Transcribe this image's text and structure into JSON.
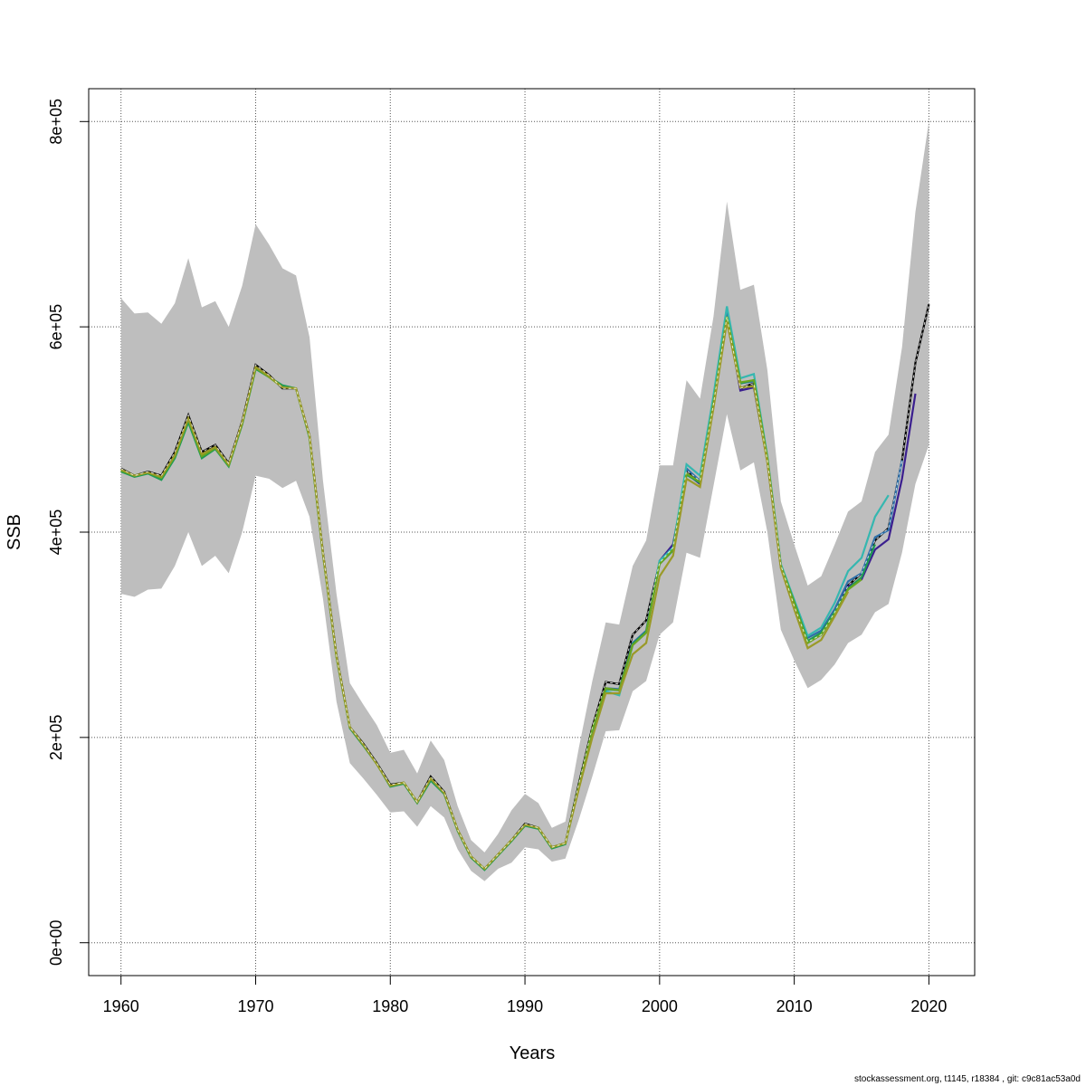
{
  "footer_text": "stockassessment.org, t1145, r18384 , git: c9c81ac53a0d",
  "chart_data": {
    "type": "line",
    "xlabel": "Years",
    "ylabel": "SSB",
    "xlim": [
      1957.6,
      2023.4
    ],
    "ylim": [
      -32000,
      832000
    ],
    "x_ticks": [
      1960,
      1970,
      1980,
      1990,
      2000,
      2010,
      2020
    ],
    "x_tick_labels": [
      "1960",
      "1970",
      "1980",
      "1990",
      "2000",
      "2010",
      "2020"
    ],
    "y_ticks": [
      0,
      200000,
      400000,
      600000,
      800000
    ],
    "y_tick_labels": [
      "0e+00",
      "2e+05",
      "4e+05",
      "6e+05",
      "8e+05"
    ],
    "grid": true,
    "colors": {
      "band": "#bebebe",
      "base": "#000000",
      "series": [
        "#3b1f8f",
        "#2e6fa8",
        "#35b7b0",
        "#1e9b55",
        "#6aa520",
        "#9a9a28"
      ]
    },
    "band": {
      "x": [
        1960,
        1961,
        1962,
        1963,
        1964,
        1965,
        1966,
        1967,
        1968,
        1969,
        1970,
        1971,
        1972,
        1973,
        1974,
        1975,
        1976,
        1977,
        1978,
        1979,
        1980,
        1981,
        1982,
        1983,
        1984,
        1985,
        1986,
        1987,
        1988,
        1989,
        1990,
        1991,
        1992,
        1993,
        1994,
        1995,
        1996,
        1997,
        1998,
        1999,
        2000,
        2001,
        2002,
        2003,
        2004,
        2005,
        2006,
        2007,
        2008,
        2009,
        2010,
        2011,
        2012,
        2013,
        2014,
        2015,
        2016,
        2017,
        2018,
        2019,
        2020
      ],
      "lower": [
        340000,
        337000,
        344000,
        345000,
        367000,
        400000,
        367000,
        377000,
        360000,
        400000,
        455000,
        452000,
        443000,
        450000,
        415000,
        335000,
        235000,
        175000,
        160000,
        144000,
        127000,
        128000,
        113000,
        133000,
        122000,
        91000,
        70000,
        60000,
        72000,
        78000,
        93000,
        91000,
        79000,
        82000,
        120000,
        162000,
        206000,
        207000,
        245000,
        255000,
        300000,
        312000,
        380000,
        375000,
        445000,
        515000,
        460000,
        468000,
        400000,
        305000,
        275000,
        248000,
        256000,
        271000,
        292000,
        300000,
        322000,
        330000,
        380000,
        447000,
        485000
      ],
      "upper": [
        628000,
        613000,
        614000,
        603000,
        623000,
        667000,
        619000,
        625000,
        600000,
        640000,
        700000,
        680000,
        657000,
        650000,
        590000,
        450000,
        340000,
        253000,
        232000,
        212000,
        185000,
        188000,
        165000,
        197000,
        178000,
        133000,
        100000,
        88000,
        106000,
        129000,
        145000,
        136000,
        112000,
        118000,
        190000,
        255000,
        312000,
        310000,
        367000,
        392000,
        465000,
        465000,
        548000,
        530000,
        610000,
        722000,
        636000,
        641000,
        558000,
        430000,
        388000,
        348000,
        357000,
        388000,
        420000,
        430000,
        478000,
        495000,
        580000,
        712000,
        800000
      ]
    },
    "base": {
      "name": "",
      "x": [
        1960,
        1961,
        1962,
        1963,
        1964,
        1965,
        1966,
        1967,
        1968,
        1969,
        1970,
        1971,
        1972,
        1973,
        1974,
        1975,
        1976,
        1977,
        1978,
        1979,
        1980,
        1981,
        1982,
        1983,
        1984,
        1985,
        1986,
        1987,
        1988,
        1989,
        1990,
        1991,
        1992,
        1993,
        1994,
        1995,
        1996,
        1997,
        1998,
        1999,
        2000,
        2001,
        2002,
        2003,
        2004,
        2005,
        2006,
        2007,
        2008,
        2009,
        2010,
        2011,
        2012,
        2013,
        2014,
        2015,
        2016,
        2017,
        2018,
        2019,
        2020
      ],
      "values": [
        462000,
        455000,
        459000,
        455000,
        478000,
        514000,
        478000,
        485000,
        467000,
        508000,
        563000,
        553000,
        540000,
        540000,
        494000,
        380000,
        280000,
        210000,
        194000,
        175000,
        154000,
        156000,
        137000,
        162000,
        147000,
        110000,
        84000,
        72000,
        86000,
        100000,
        116000,
        112000,
        93000,
        97000,
        155000,
        210000,
        254000,
        252000,
        300000,
        314000,
        370000,
        385000,
        460000,
        450000,
        525000,
        610000,
        540000,
        545000,
        470000,
        368000,
        328000,
        293000,
        300000,
        322000,
        348000,
        360000,
        392000,
        404000,
        470000,
        565000,
        622000
      ]
    },
    "series": [
      {
        "name": "",
        "x": [
          2000,
          2001,
          2002,
          2003,
          2004,
          2005,
          2006,
          2007,
          2008,
          2009,
          2010,
          2011,
          2012,
          2013,
          2014,
          2015,
          2016,
          2017,
          2018,
          2019
        ],
        "values": [
          372000,
          388000,
          457000,
          447000,
          527000,
          612000,
          538000,
          541000,
          469000,
          366000,
          330000,
          293000,
          302000,
          322000,
          347000,
          354000,
          383000,
          393000,
          452000,
          535000
        ]
      },
      {
        "name": "",
        "x": [
          1995,
          1996,
          1997,
          1998,
          1999,
          2000,
          2001,
          2002,
          2003,
          2004,
          2005,
          2006,
          2007,
          2008,
          2009,
          2010,
          2011,
          2012,
          2013,
          2014,
          2015,
          2016,
          2017,
          2018
        ],
        "values": [
          205000,
          248000,
          247000,
          292000,
          304000,
          372000,
          384000,
          462000,
          450000,
          525000,
          615000,
          545000,
          547000,
          472000,
          368000,
          332000,
          297000,
          304000,
          325000,
          352000,
          360000,
          395000,
          402000,
          470000
        ]
      },
      {
        "name": "",
        "x": [
          1995,
          1996,
          1997,
          1998,
          1999,
          2000,
          2001,
          2002,
          2003,
          2004,
          2005,
          2006,
          2007,
          2008,
          2009,
          2010,
          2011,
          2012,
          2013,
          2014,
          2015,
          2016,
          2017
        ],
        "values": [
          205000,
          245000,
          241000,
          290000,
          302000,
          372000,
          385000,
          466000,
          455000,
          533000,
          620000,
          550000,
          554000,
          474000,
          369000,
          334000,
          299000,
          307000,
          331000,
          362000,
          375000,
          415000,
          436000
        ]
      },
      {
        "name": "",
        "x": [
          1960,
          1961,
          1962,
          1963,
          1964,
          1965,
          1966,
          1967,
          1968,
          1969,
          1970,
          1971,
          1972,
          1973,
          1974,
          1975,
          1976,
          1977,
          1978,
          1979,
          1980,
          1981,
          1982,
          1983,
          1984,
          1985,
          1986,
          1987,
          1988,
          1989,
          1990,
          1991,
          1992,
          1993,
          1994,
          1995,
          1996,
          1997,
          1998,
          1999,
          2000,
          2001,
          2002,
          2003,
          2004,
          2005,
          2006,
          2007,
          2008,
          2009,
          2010,
          2011,
          2012,
          2013,
          2014,
          2015,
          2016
        ],
        "values": [
          459000,
          454000,
          457000,
          451000,
          472000,
          507000,
          472000,
          481000,
          464000,
          505000,
          559000,
          551000,
          543000,
          540000,
          492000,
          378000,
          278000,
          209000,
          192000,
          174000,
          152000,
          155000,
          136000,
          158000,
          145000,
          109000,
          83000,
          71000,
          85000,
          99000,
          114000,
          111000,
          92000,
          96000,
          152000,
          207000,
          247000,
          246000,
          291000,
          303000,
          369000,
          382000,
          456000,
          448000,
          525000,
          609000,
          545000,
          548000,
          472000,
          367000,
          332000,
          294000,
          302000,
          322000,
          345000,
          356000,
          388000
        ]
      },
      {
        "name": "",
        "x": [
          1960,
          1961,
          1962,
          1963,
          1964,
          1965,
          1966,
          1967,
          1968,
          1969,
          1970,
          1971,
          1972,
          1973,
          1974,
          1975,
          1976,
          1977,
          1978,
          1979,
          1980,
          1981,
          1982,
          1983,
          1984,
          1985,
          1986,
          1987,
          1988,
          1989,
          1990,
          1991,
          1992,
          1993,
          1994,
          1995,
          1996,
          1997,
          1998,
          1999,
          2000,
          2001,
          2002,
          2003,
          2004,
          2005,
          2006,
          2007,
          2008,
          2009,
          2010,
          2011,
          2012,
          2013,
          2014,
          2015
        ],
        "values": [
          460000,
          455000,
          458000,
          453000,
          474000,
          510000,
          474000,
          482000,
          465000,
          506000,
          560000,
          551000,
          541000,
          540000,
          493000,
          379000,
          279000,
          210000,
          193000,
          174000,
          153000,
          156000,
          137000,
          160000,
          146000,
          110000,
          84000,
          72000,
          86000,
          100000,
          115000,
          112000,
          93000,
          97000,
          153000,
          208000,
          248000,
          246000,
          290000,
          302000,
          369000,
          383000,
          457000,
          449000,
          526000,
          610000,
          546000,
          548000,
          472000,
          367000,
          331000,
          292000,
          300000,
          320000,
          344000,
          354000
        ]
      },
      {
        "name": "",
        "x": [
          1960,
          1961,
          1962,
          1963,
          1964,
          1965,
          1966,
          1967,
          1968,
          1969,
          1970,
          1971,
          1972,
          1973,
          1974,
          1975,
          1976,
          1977,
          1978,
          1979,
          1980,
          1981,
          1982,
          1983,
          1984,
          1985,
          1986,
          1987,
          1988,
          1989,
          1990,
          1991,
          1992,
          1993,
          1994,
          1995,
          1996,
          1997,
          1998,
          1999,
          2000,
          2001,
          2002,
          2003,
          2004,
          2005,
          2006,
          2007,
          2008,
          2009,
          2010,
          2011,
          2012,
          2013,
          2014
        ],
        "values": [
          461000,
          455000,
          458000,
          454000,
          475000,
          511000,
          476000,
          483000,
          466000,
          507000,
          561000,
          552000,
          541000,
          540000,
          494000,
          379000,
          279000,
          210000,
          193000,
          174000,
          153000,
          156000,
          137000,
          160000,
          146000,
          110000,
          84000,
          72000,
          86000,
          100000,
          115000,
          112000,
          93000,
          97000,
          150000,
          200000,
          243000,
          243000,
          281000,
          292000,
          357000,
          377000,
          452000,
          444000,
          521000,
          605000,
          541000,
          542000,
          468000,
          365000,
          325000,
          287000,
          295000,
          318000,
          342000
        ]
      }
    ]
  }
}
